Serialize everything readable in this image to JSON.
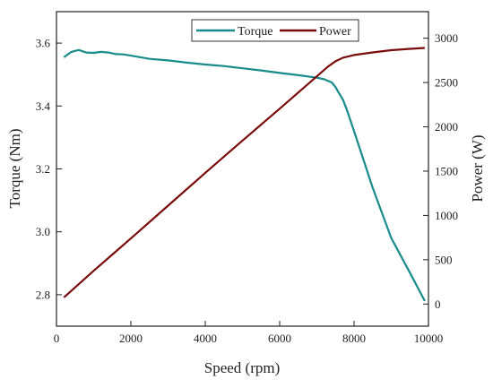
{
  "colors": {
    "torque": "#1a8b8b",
    "power": "#7a0c0c",
    "axis": "#222222"
  },
  "chart_data": {
    "type": "line",
    "title": "",
    "xlabel": "Speed (rpm)",
    "ylabel": "Torque (Nm)",
    "y2label": "Power (W)",
    "xlim": [
      0,
      10000
    ],
    "ylim": [
      2.7,
      3.7
    ],
    "y2lim": [
      -250,
      3300
    ],
    "xticks": [
      0,
      2000,
      4000,
      6000,
      8000,
      10000
    ],
    "yticks": [
      2.8,
      3.0,
      3.2,
      3.4,
      3.6
    ],
    "y2ticks": [
      0,
      500,
      1000,
      1500,
      2000,
      2500,
      3000
    ],
    "grid": false,
    "legend": {
      "position": "top-center",
      "entries": [
        "Torque",
        "Power"
      ]
    },
    "series": [
      {
        "name": "Torque",
        "axis": "left",
        "x": [
          200,
          400,
          600,
          800,
          1000,
          1200,
          1400,
          1600,
          1800,
          2000,
          2500,
          3000,
          3500,
          4000,
          4500,
          5000,
          5500,
          6000,
          6500,
          7000,
          7200,
          7400,
          7500,
          7600,
          7700,
          7800,
          8000,
          8500,
          9000,
          9500,
          9900
        ],
        "values": [
          3.555,
          3.572,
          3.578,
          3.57,
          3.569,
          3.572,
          3.57,
          3.565,
          3.564,
          3.56,
          3.55,
          3.545,
          3.538,
          3.532,
          3.527,
          3.52,
          3.513,
          3.505,
          3.498,
          3.49,
          3.485,
          3.475,
          3.46,
          3.44,
          3.42,
          3.39,
          3.32,
          3.14,
          2.98,
          2.87,
          2.78
        ]
      },
      {
        "name": "Power",
        "axis": "right",
        "x": [
          200,
          1000,
          2000,
          3000,
          4000,
          5000,
          6000,
          7000,
          7300,
          7500,
          7700,
          7800,
          8000,
          8500,
          9000,
          9500,
          9900
        ],
        "values": [
          75,
          375,
          740,
          1110,
          1480,
          1845,
          2205,
          2570,
          2680,
          2740,
          2780,
          2790,
          2810,
          2840,
          2865,
          2880,
          2890
        ]
      }
    ]
  }
}
